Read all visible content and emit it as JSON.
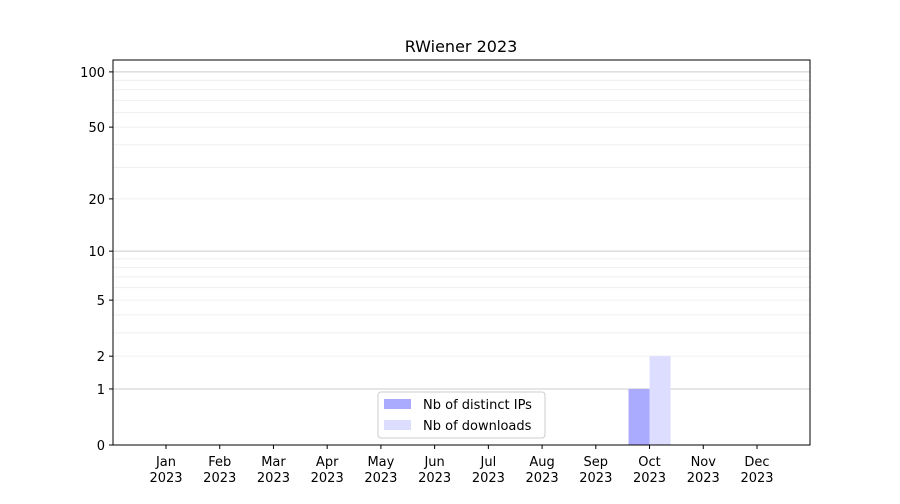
{
  "chart_data": {
    "type": "bar",
    "title": "RWiener 2023",
    "xlabel": "",
    "ylabel": "",
    "yscale": "log(1+y)",
    "ylim": [
      0,
      116
    ],
    "categories": [
      "Jan\n2023",
      "Feb\n2023",
      "Mar\n2023",
      "Apr\n2023",
      "May\n2023",
      "Jun\n2023",
      "Jul\n2023",
      "Aug\n2023",
      "Sep\n2023",
      "Oct\n2023",
      "Nov\n2023",
      "Dec\n2023"
    ],
    "yticks": [
      0,
      1,
      2,
      5,
      10,
      20,
      50,
      100
    ],
    "grid": true,
    "legend_position": "lower-center",
    "series": [
      {
        "name": "Nb of distinct IPs",
        "color": "#aaaaff",
        "values": [
          0,
          0,
          0,
          0,
          0,
          0,
          0,
          0,
          0,
          1,
          0,
          0
        ]
      },
      {
        "name": "Nb of downloads",
        "color": "#ddddff",
        "values": [
          0,
          0,
          0,
          0,
          0,
          0,
          0,
          0,
          0,
          2,
          0,
          0
        ]
      }
    ]
  }
}
